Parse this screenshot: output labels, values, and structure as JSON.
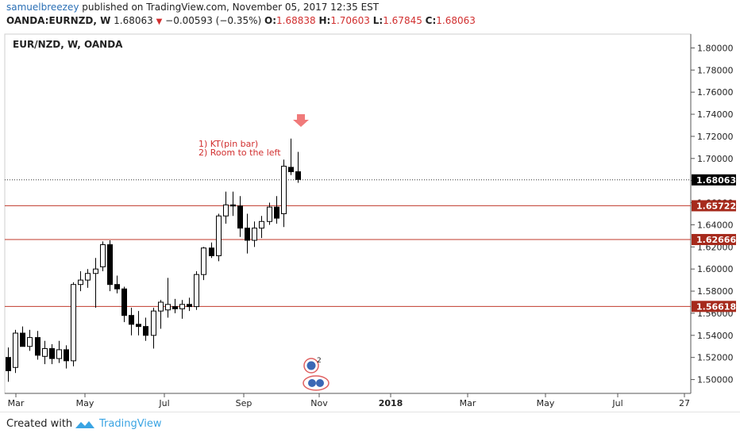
{
  "header": {
    "author": "samuelbreezey",
    "published_text": " published on TradingView.com, November 05, 2017 12:35 EST",
    "symbol": "OANDA:EURNZD, W",
    "last": "1.68063",
    "change": "−0.00593 (−0.35%)",
    "o_label": "O:",
    "o_value": "1.68838",
    "h_label": "H:",
    "h_value": "1.70603",
    "l_label": "L:",
    "l_value": "1.67845",
    "c_label": "C:",
    "c_value": "1.68063"
  },
  "chart_title": "EUR/NZD, W, OANDA",
  "annotation_lines": [
    "1) KT(pin bar)",
    "2) Room to the left"
  ],
  "footer": {
    "created_with": "Created with",
    "brand": "TradingView"
  },
  "colors": {
    "level_line": "#c0392b",
    "label_bg_dark": "#000000",
    "label_bg_red": "#a62a1c",
    "arrow": "#f07a7a",
    "annotation": "#d12f2f",
    "marker_circle": "#e06060",
    "marker_fill": "#3b68b5"
  },
  "chart_data": {
    "type": "candlestick",
    "title": "EUR/NZD, W, OANDA",
    "ylim": [
      1.4875,
      1.8125
    ],
    "y_ticks": [
      "1.80000",
      "1.78000",
      "1.76000",
      "1.74000",
      "1.72000",
      "1.70000",
      "1.68000",
      "1.66000",
      "1.64000",
      "1.62000",
      "1.60000",
      "1.58000",
      "1.56000",
      "1.54000",
      "1.52000",
      "1.50000"
    ],
    "x_ticks": [
      "Mar",
      "May",
      "Jul",
      "Sep",
      "Nov",
      "2018",
      "Mar",
      "May",
      "Jul",
      "27"
    ],
    "levels": [
      {
        "value": 1.68063,
        "label": "1.68063",
        "style": "dotted"
      },
      {
        "value": 1.65722,
        "label": "1.65722",
        "style": "solid"
      },
      {
        "value": 1.62666,
        "label": "1.62666",
        "style": "solid"
      },
      {
        "value": 1.56618,
        "label": "1.56618",
        "style": "solid"
      }
    ],
    "candles": [
      [
        1.52,
        1.529,
        1.498,
        1.508
      ],
      [
        1.511,
        1.545,
        1.506,
        1.542
      ],
      [
        1.542,
        1.548,
        1.532,
        1.53
      ],
      [
        1.53,
        1.545,
        1.526,
        1.538
      ],
      [
        1.538,
        1.544,
        1.518,
        1.522
      ],
      [
        1.521,
        1.535,
        1.514,
        1.528
      ],
      [
        1.528,
        1.532,
        1.514,
        1.519
      ],
      [
        1.519,
        1.535,
        1.515,
        1.527
      ],
      [
        1.527,
        1.531,
        1.51,
        1.517
      ],
      [
        1.517,
        1.588,
        1.512,
        1.586
      ],
      [
        1.586,
        1.598,
        1.58,
        1.59
      ],
      [
        1.59,
        1.6,
        1.583,
        1.596
      ],
      [
        1.596,
        1.61,
        1.565,
        1.6
      ],
      [
        1.602,
        1.625,
        1.598,
        1.622
      ],
      [
        1.622,
        1.626,
        1.58,
        1.586
      ],
      [
        1.586,
        1.594,
        1.578,
        1.582
      ],
      [
        1.582,
        1.584,
        1.552,
        1.558
      ],
      [
        1.558,
        1.565,
        1.54,
        1.55
      ],
      [
        1.55,
        1.562,
        1.54,
        1.548
      ],
      [
        1.548,
        1.556,
        1.535,
        1.54
      ],
      [
        1.54,
        1.565,
        1.528,
        1.562
      ],
      [
        1.562,
        1.572,
        1.546,
        1.57
      ],
      [
        1.563,
        1.592,
        1.556,
        1.568
      ],
      [
        1.566,
        1.573,
        1.56,
        1.564
      ],
      [
        1.564,
        1.572,
        1.555,
        1.568
      ],
      [
        1.568,
        1.574,
        1.562,
        1.566
      ],
      [
        1.566,
        1.598,
        1.563,
        1.595
      ],
      [
        1.595,
        1.62,
        1.59,
        1.619
      ],
      [
        1.619,
        1.624,
        1.61,
        1.612
      ],
      [
        1.612,
        1.65,
        1.607,
        1.648
      ],
      [
        1.648,
        1.67,
        1.641,
        1.658
      ],
      [
        1.658,
        1.67,
        1.648,
        1.657
      ],
      [
        1.657,
        1.666,
        1.629,
        1.637
      ],
      [
        1.637,
        1.65,
        1.614,
        1.626
      ],
      [
        1.626,
        1.643,
        1.62,
        1.637
      ],
      [
        1.637,
        1.648,
        1.628,
        1.643
      ],
      [
        1.643,
        1.66,
        1.64,
        1.656
      ],
      [
        1.656,
        1.666,
        1.641,
        1.646
      ],
      [
        1.65,
        1.699,
        1.638,
        1.693
      ],
      [
        1.692,
        1.718,
        1.685,
        1.688
      ],
      [
        1.688,
        1.706,
        1.678,
        1.681
      ]
    ],
    "marker_count": "2"
  }
}
